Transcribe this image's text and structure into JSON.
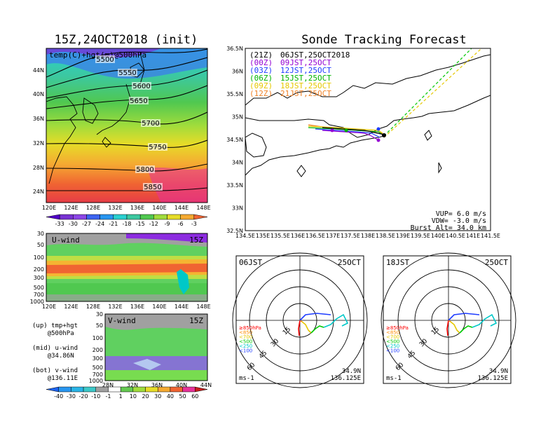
{
  "main_title": "15Z,24OCT2018 (init)",
  "tracking_title": "Sonde Tracking Forecast",
  "top_panel": {
    "label": "temp(C)+hgt(m)@500hPa",
    "lat_ticks": [
      "44N",
      "40N",
      "36N",
      "32N",
      "28N",
      "24N"
    ],
    "lon_ticks": [
      "120E",
      "124E",
      "128E",
      "132E",
      "136E",
      "140E",
      "144E",
      "148E"
    ],
    "contour_labels": [
      "5500",
      "5550",
      "5600",
      "5650",
      "5700",
      "5750",
      "5800",
      "5850"
    ],
    "colorbar_labels": [
      "-33",
      "-30",
      "-27",
      "-24",
      "-21",
      "-18",
      "-15",
      "-12",
      "-9",
      "-6",
      "-3"
    ]
  },
  "u_panel": {
    "label": "U-wind",
    "time": "15Z",
    "p_ticks": [
      "30",
      "50",
      "100",
      "200",
      "300",
      "500",
      "700",
      "1000"
    ],
    "lon_ticks": [
      "120E",
      "124E",
      "128E",
      "132E",
      "136E",
      "140E",
      "144E",
      "148E"
    ]
  },
  "v_panel": {
    "label": "V-wind",
    "time": "15Z",
    "p_ticks": [
      "30",
      "50",
      "100",
      "200",
      "300",
      "500",
      "700",
      "1000"
    ],
    "lat_ticks": [
      "28N",
      "32N",
      "36N",
      "40N",
      "44N"
    ],
    "colorbar_labels": [
      "-40",
      "-30",
      "-20",
      "-10",
      "-1",
      "1",
      "10",
      "20",
      "30",
      "40",
      "50",
      "60"
    ]
  },
  "notes": [
    {
      "line1": "(up) tmp+hgt",
      "line2": "@500hPa"
    },
    {
      "line1": "(mid) u-wind",
      "line2": "@34.86N"
    },
    {
      "line1": "(bot) v-wind",
      "line2": "@136.11E"
    }
  ],
  "map": {
    "lat_ticks": [
      "36.5N",
      "36N",
      "35.5N",
      "35N",
      "34.5N",
      "34N",
      "33.5N",
      "33N",
      "32.5N"
    ],
    "lon_ticks": [
      "134.5E",
      "135E",
      "135.5E",
      "136E",
      "136.5E",
      "137E",
      "137.5E",
      "138E",
      "138.5E",
      "139E",
      "139.5E",
      "140E",
      "140.5E",
      "141E",
      "141.5E"
    ],
    "launches": [
      {
        "z": "(21Z)",
        "jst": "06JST,25OCT2018",
        "color": "#000000"
      },
      {
        "z": "(00Z)",
        "jst": "09JST,25OCT",
        "color": "#9400d3"
      },
      {
        "z": "(03Z)",
        "jst": "12JST,25OCT",
        "color": "#1e3cff"
      },
      {
        "z": "(06Z)",
        "jst": "15JST,25OCT",
        "color": "#00b400"
      },
      {
        "z": "(09Z)",
        "jst": "18JST,25OCT",
        "color": "#e6c800"
      },
      {
        "z": "(12Z)",
        "jst": "21JST,25OCT",
        "color": "#f08228"
      }
    ],
    "vup": "VUP=  6.0 m/s",
    "vdw": "VDW= -3.0 m/s",
    "burst": "Burst Alt= 34.0 km"
  },
  "hodographs": [
    {
      "time": "06JST",
      "date": "25OCT",
      "lat": "34.9N",
      "lon": "136.125E",
      "unit": "ms-1",
      "rings": [
        "15",
        "30",
        "45",
        "60"
      ],
      "legend": [
        {
          "t": "≥850hPa",
          "c": "#ff0000"
        },
        {
          "t": "<850",
          "c": "#ff8c00"
        },
        {
          "t": "<700",
          "c": "#e6c800"
        },
        {
          "t": "<500",
          "c": "#00c800"
        },
        {
          "t": "<250",
          "c": "#00c8c8"
        },
        {
          "t": "<100",
          "c": "#1e3cff"
        }
      ]
    },
    {
      "time": "18JST",
      "date": "25OCT",
      "lat": "34.9N",
      "lon": "136.125E",
      "unit": "ms-1",
      "rings": [
        "15",
        "30",
        "45",
        "60"
      ],
      "legend": [
        {
          "t": "≥850hPa",
          "c": "#ff0000"
        },
        {
          "t": "<850",
          "c": "#ff8c00"
        },
        {
          "t": "<700",
          "c": "#e6c800"
        },
        {
          "t": "<500",
          "c": "#00c800"
        },
        {
          "t": "<250",
          "c": "#00c8c8"
        },
        {
          "t": "<100",
          "c": "#1e3cff"
        }
      ]
    }
  ]
}
